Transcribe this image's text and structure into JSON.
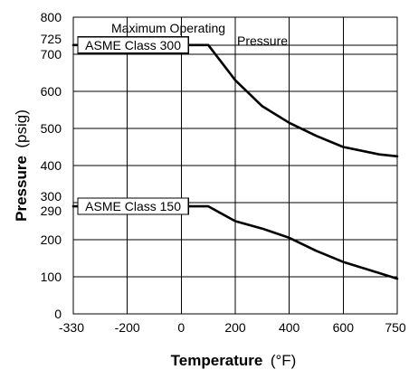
{
  "chart_data": {
    "type": "line",
    "title": "Maximum Operating Pressure",
    "title_lines": [
      "Maximum Operating",
      "Pressure"
    ],
    "xlabel": "Temperature",
    "xlabel_unit": "(°F)",
    "ylabel": "Pressure",
    "ylabel_unit": "(psig)",
    "grid": true,
    "x_categories": [
      -330,
      -200,
      0,
      200,
      400,
      600,
      750
    ],
    "x_tick_labels": [
      "-330",
      "-200",
      "0",
      "200",
      "400",
      "600",
      "750"
    ],
    "y_ticks_primary": [
      0,
      100,
      200,
      400,
      500,
      600,
      700,
      800
    ],
    "y_tick_labels_primary": [
      "0",
      "100",
      "200",
      "400",
      "500",
      "600",
      "700",
      "800"
    ],
    "y_ticks_special": [
      {
        "value": 725,
        "label": "725",
        "offset": "up"
      },
      {
        "value": 300,
        "label": "300",
        "offset": "up"
      },
      {
        "value": 290,
        "label": "290",
        "offset": "down"
      }
    ],
    "ylim": [
      0,
      800
    ],
    "series": [
      {
        "name": "ASME Class 300",
        "x": [
          -330,
          -200,
          0,
          100,
          200,
          300,
          400,
          500,
          600,
          700,
          750
        ],
        "y": [
          725,
          725,
          725,
          725,
          630,
          560,
          515,
          480,
          450,
          430,
          425
        ]
      },
      {
        "name": "ASME Class 150",
        "x": [
          -330,
          -200,
          0,
          100,
          200,
          300,
          400,
          500,
          600,
          700,
          750
        ],
        "y": [
          290,
          290,
          290,
          290,
          250,
          230,
          205,
          170,
          140,
          110,
          95
        ]
      }
    ]
  }
}
